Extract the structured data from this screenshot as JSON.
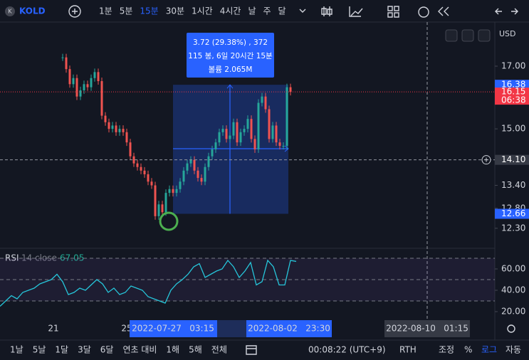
{
  "toolbar": {
    "symbol_icon": "K",
    "symbol": "KOLD",
    "intervals": [
      "1분",
      "5분",
      "15분",
      "30분",
      "1시간",
      "4시간",
      "날",
      "주",
      "달"
    ],
    "active_interval": 2
  },
  "price_pane": {
    "currency": "USD",
    "scale": "log",
    "ticks": [
      {
        "value": 17,
        "label": "17.00"
      },
      {
        "value": 15,
        "label": "15.00"
      },
      {
        "value": 13.4,
        "label": "13.40"
      },
      {
        "value": 12.8,
        "label": "12.80"
      },
      {
        "value": 12.3,
        "label": "12.30"
      }
    ],
    "closes": [
      17.3,
      16.9,
      16.4,
      16.6,
      16.0,
      16.2,
      16.4,
      16.3,
      16.6,
      16.8,
      16.5,
      15.4,
      15.2,
      15.0,
      15.1,
      14.9,
      15.0,
      14.9,
      14.6,
      14.2,
      14.0,
      13.9,
      13.8,
      13.7,
      13.5,
      13.4,
      12.6,
      12.9,
      12.7,
      13.2,
      13.3,
      13.2,
      13.3,
      13.5,
      13.8,
      14.0,
      14.1,
      13.8,
      13.6,
      13.5,
      13.9,
      14.2,
      14.4,
      14.6,
      14.9,
      15.0,
      14.7,
      14.8,
      15.2,
      14.6,
      14.9,
      15.0,
      15.3,
      14.7,
      14.4,
      15.8,
      16.0,
      15.6,
      14.7,
      15.1,
      14.6,
      14.5,
      14.5,
      16.3,
      16.15
    ],
    "markers": [
      {
        "value": 16.38,
        "label": "16.38",
        "color": "#2962ff"
      },
      {
        "value": 16.15,
        "label": "16.15",
        "color": "#f23645",
        "countdown": "06:38"
      },
      {
        "value": 14.1,
        "label": "14.10",
        "color": "#363a45"
      },
      {
        "value": 12.66,
        "label": "12.66",
        "color": "#2962ff"
      }
    ],
    "measure": {
      "from": 12.66,
      "to": 16.38,
      "line1": "3.72 (29.38%) , 372",
      "line2": "115 봉, 6일 20시간 15분",
      "line3": "볼륨 2.065M"
    }
  },
  "rsi_pane": {
    "label": "RSI",
    "params": "14 close",
    "current": "67.05",
    "ticks": [
      {
        "value": 60,
        "label": "60.00"
      },
      {
        "value": 40,
        "label": "40.00"
      },
      {
        "value": 20,
        "label": "20.00"
      }
    ],
    "bands": [
      70,
      50,
      30
    ],
    "values": [
      25,
      30,
      35,
      32,
      38,
      40,
      42,
      46,
      48,
      50,
      55,
      48,
      36,
      38,
      42,
      40,
      45,
      50,
      46,
      38,
      42,
      36,
      38,
      44,
      42,
      40,
      34,
      32,
      30,
      28,
      40,
      46,
      50,
      55,
      62,
      65,
      52,
      55,
      58,
      60,
      68,
      62,
      52,
      58,
      66,
      45,
      48,
      68,
      62,
      45,
      45,
      68,
      67.05
    ]
  },
  "time_axis": {
    "labels": [
      "21",
      "25"
    ],
    "range_start": "2022-07-27   03:15",
    "range_end": "2022-08-02   23:30",
    "crosshair": "2022-08-10   01:15"
  },
  "bottom_bar": {
    "ranges": [
      "1날",
      "5날",
      "1달",
      "3달",
      "6달",
      "연초 대비",
      "1해",
      "5해",
      "전체"
    ],
    "clock": "00:08:22 (UTC+9)",
    "session": "RTH",
    "options": [
      "조정",
      "%",
      "로그",
      "자동"
    ],
    "active_option": 2
  }
}
